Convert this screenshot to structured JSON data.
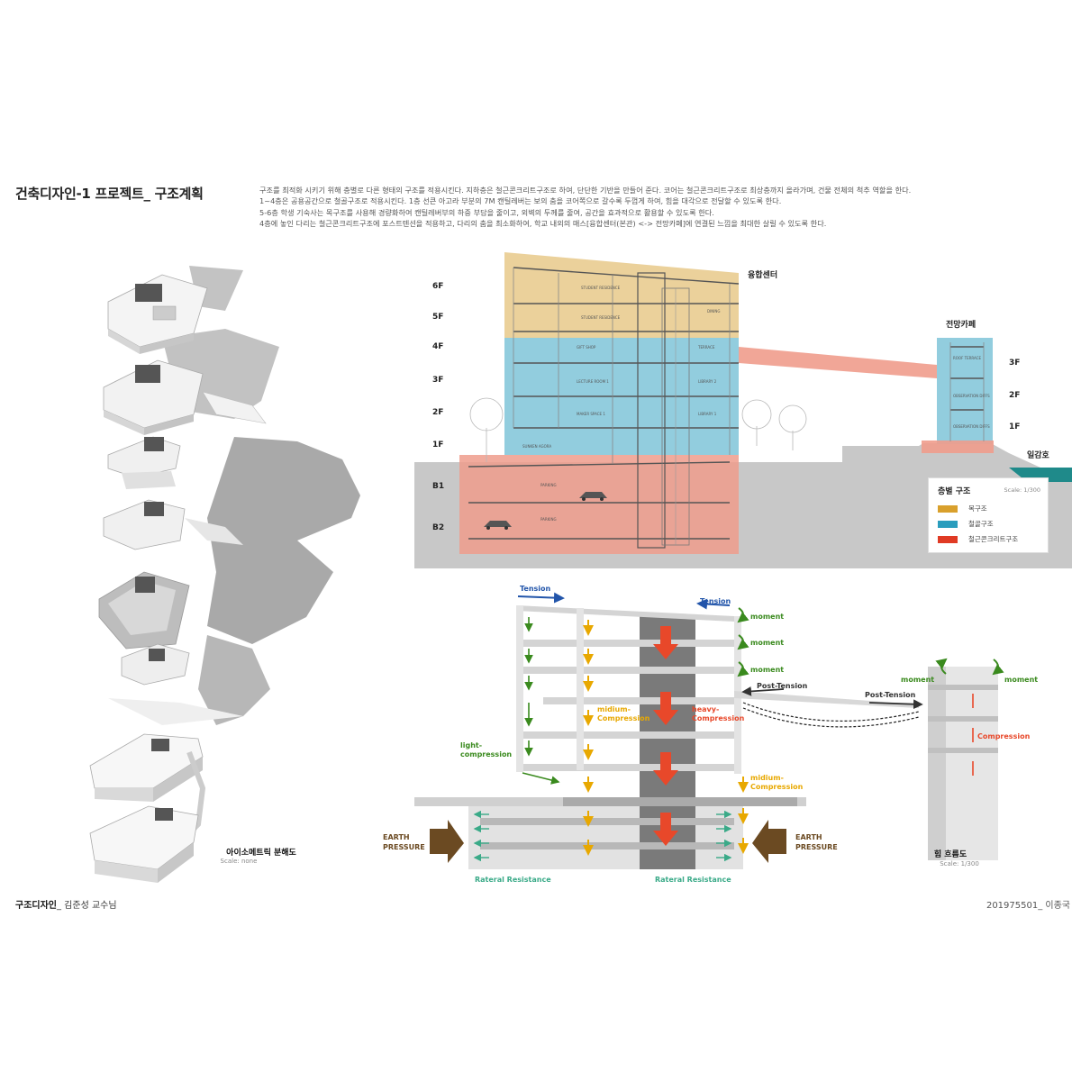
{
  "header": {
    "title": "건축디자인-1 프로젝트_ 구조계획",
    "description": [
      "구조를 최적화 시키기 위해 층별로 다른 형태의 구조를 적용시킨다. 지하층은 철근콘크리트구조로 하여, 단단한 기반을 만들어 준다. 코어는 철근콘크리트구조로 최상층까지 올라가며, 건물 전체의 척추 역할을 한다.",
      "1~4층은 공용공간으로 철골구조로 적용시킨다. 1층 선큰 아고라 부분의 7M 캔틸레버는 보의 춤을 코어쪽으로 갈수록 두껍게 하여, 힘을 대각으로 전달할 수 있도록 한다.",
      "5-6층 학생 기숙사는 목구조를 사용해 경량화하여  캔틸레버부의 하중 부담을 줄이고, 외벽의 두께를 줄여, 공간을 효과적으로 활용할 수 있도록 한다.",
      "4층에 놓인 다리는 철근콘크리트구조에 포스트텐션을 적용하고, 다리의 춤을 최소화하여, 학교 내외의 매스[융합센터(본관) <-> 전망카페]에 연결된 느낌을 최대한 살릴 수 있도록 한다."
    ]
  },
  "isometric": {
    "caption": "아이소메트릭 분해도",
    "scale": "Scale: none"
  },
  "section": {
    "main_building_label": "융합센터",
    "cafe_label": "전망카페",
    "lake_label": "일감호",
    "floors_main": [
      "6F",
      "5F",
      "4F",
      "3F",
      "2F",
      "1F",
      "B1",
      "B2"
    ],
    "floors_cafe": [
      "3F",
      "2F",
      "1F"
    ],
    "rooms": {
      "student_residence_1": "STUDENT RESIDENCE",
      "student_residence_2": "STUDENT RESIDENCE",
      "dining": "DINING",
      "gift_shop": "GIFT SHOP",
      "terrace": "TERRACE",
      "lecture_room": "LECTURE ROOM 1",
      "library2": "LIBRARY 2",
      "maker_space": "MAKER SPACE 1",
      "library1": "LIBRARY 1",
      "sunken_agora": "SUNKEN AGORA",
      "parking1": "PARKING",
      "parking2": "PARKING",
      "roof_terrace": "ROOF TERRACE",
      "observation_2": "OBSERVATION DIFFS",
      "observation_1": "OBSERVATION DIFFS"
    },
    "colors": {
      "timber": "#e8c98a",
      "steel": "#7fc4d8",
      "rc": "#ef9c8c",
      "ground": "#c8c8c8",
      "lake": "#1f8a8a"
    }
  },
  "legend": {
    "title": "층별 구조",
    "scale": "Scale: 1/300",
    "items": [
      {
        "label": "목구조",
        "color": "#d9a02c"
      },
      {
        "label": "철골구조",
        "color": "#2a9dbd"
      },
      {
        "label": "철근콘크리트구조",
        "color": "#e03a24"
      }
    ]
  },
  "forces": {
    "tension_left": "Tension",
    "tension_right": "Tension",
    "moment_1": "moment",
    "moment_2": "moment",
    "moment_3": "moment",
    "post_tension_main": "Post-Tension",
    "post_tension_cafe": "Post-Tension",
    "midium_compression": "midium-\nCompression",
    "heavy_compression": "heavy-\nCompression",
    "light_compression": "light-\ncompression",
    "midium_compression_2": "midium-\nCompression",
    "earth_pressure_left": "EARTH\nPRESSURE",
    "earth_pressure_right": "EARTH\nPRESSURE",
    "rateral_left": "Rateral Resistance",
    "rateral_right": "Rateral Resistance",
    "cafe_moment_left": "moment",
    "cafe_moment_right": "moment",
    "cafe_compression": "Compression",
    "caption": "힘 흐름도",
    "scale": "Scale: 1/300",
    "colors": {
      "tension": "#2255aa",
      "moment": "#3a8a1e",
      "medium": "#e8a800",
      "heavy": "#e8482a",
      "earth": "#6b4a22",
      "lateral": "#3aaa88"
    }
  },
  "footer": {
    "left_bold": "구조디자인",
    "left_rest": "_ 김준성 교수님",
    "right": "201975501_ 이종국"
  }
}
